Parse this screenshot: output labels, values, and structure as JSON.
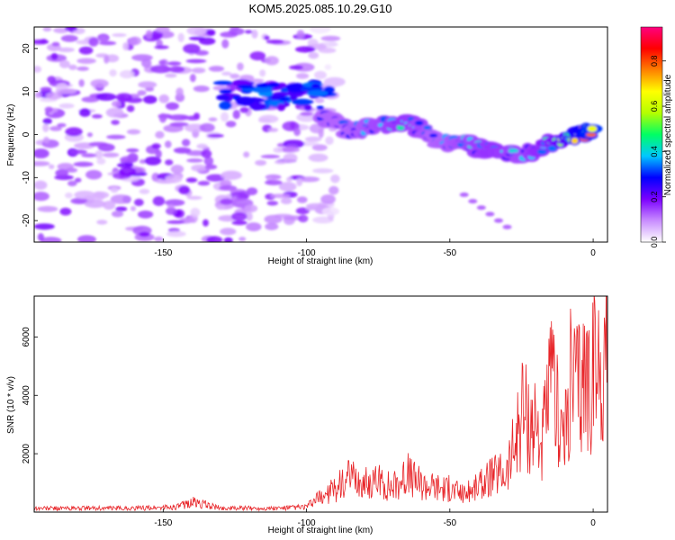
{
  "title": "KOM5.2025.085.10.29.G10",
  "colors": {
    "snr_line": "#e8262a",
    "axis": "#000000",
    "colorbar": [
      "#ffffff",
      "#c88cff",
      "#7b00ff",
      "#0000ff",
      "#00c8ff",
      "#00ff64",
      "#b4ff00",
      "#ffff00",
      "#ff8000",
      "#ff0000",
      "#ff0080"
    ]
  },
  "chart_data": [
    {
      "type": "heatmap",
      "xlabel": "Height of straight line (km)",
      "ylabel": "Frequency (Hz)",
      "xlim": [
        -195,
        5
      ],
      "ylim": [
        -25,
        25
      ],
      "xticks": [
        -150,
        -100,
        -50,
        0
      ],
      "yticks": [
        -20,
        -10,
        0,
        10,
        20
      ],
      "colorbar": {
        "label": "Normalized spectral amplitude",
        "range": [
          0,
          0.95
        ],
        "ticks": [
          0.0,
          0.2,
          0.4,
          0.6,
          0.8
        ]
      },
      "ridge": [
        {
          "x": -95,
          "y": 4,
          "amp": 0.35
        },
        {
          "x": -85,
          "y": 1,
          "amp": 0.35
        },
        {
          "x": -75,
          "y": 2,
          "amp": 0.4
        },
        {
          "x": -65,
          "y": 3,
          "amp": 0.45
        },
        {
          "x": -55,
          "y": -1,
          "amp": 0.35
        },
        {
          "x": -45,
          "y": -2,
          "amp": 0.4
        },
        {
          "x": -35,
          "y": -4,
          "amp": 0.45
        },
        {
          "x": -25,
          "y": -5,
          "amp": 0.4
        },
        {
          "x": -15,
          "y": -2,
          "amp": 0.5
        },
        {
          "x": -5,
          "y": 0,
          "amp": 0.75
        },
        {
          "x": 0,
          "y": 1,
          "amp": 0.9
        }
      ],
      "diffuse_region": {
        "x": [
          -195,
          -100
        ],
        "y": [
          -25,
          25
        ],
        "amp": 0.2
      }
    },
    {
      "type": "line",
      "xlabel": "Height of straight line (km)",
      "ylabel": "SNR (10 * v/v)",
      "xlim": [
        -195,
        5
      ],
      "ylim": [
        0,
        7400
      ],
      "xticks": [
        -150,
        -100,
        -50,
        0
      ],
      "yticks": [
        2000,
        4000,
        6000
      ],
      "series": [
        {
          "x": [
            -195,
            -180,
            -160,
            -145,
            -140,
            -130,
            -110,
            -100,
            -95,
            -90,
            -85,
            -80,
            -75,
            -70,
            -65,
            -60,
            -55,
            -50,
            -45,
            -40,
            -35,
            -30,
            -27,
            -25,
            -23,
            -20,
            -18,
            -15,
            -12,
            -10,
            -8,
            -5,
            -3,
            0,
            3,
            5
          ],
          "y": [
            150,
            150,
            150,
            200,
            400,
            150,
            150,
            200,
            600,
            900,
            1300,
            1100,
            1200,
            1000,
            1500,
            1100,
            1000,
            900,
            700,
            1000,
            1400,
            1600,
            2800,
            4200,
            3700,
            3500,
            2600,
            4800,
            4200,
            2700,
            5200,
            5000,
            5500,
            5400,
            5700,
            6200
          ]
        }
      ]
    }
  ]
}
